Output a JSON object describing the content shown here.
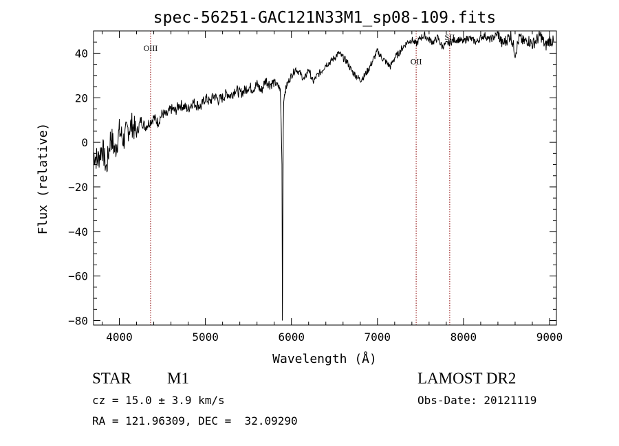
{
  "chart_data": {
    "type": "line",
    "title": "spec-56251-GAC121N33M1_sp08-109.fits",
    "xlabel": "Wavelength (Å)",
    "ylabel": "Flux (relative)",
    "xlim": [
      3700,
      9080
    ],
    "ylim": [
      -82,
      50
    ],
    "xticks": [
      4000,
      5000,
      6000,
      7000,
      8000,
      9000
    ],
    "yticks": [
      -80,
      -60,
      -40,
      -20,
      0,
      20,
      40
    ],
    "series": [
      {
        "name": "flux",
        "x": [
          3700,
          3750,
          3800,
          3850,
          3900,
          3950,
          4000,
          4050,
          4100,
          4150,
          4200,
          4250,
          4300,
          4350,
          4400,
          4450,
          4500,
          4550,
          4600,
          4650,
          4700,
          4750,
          4800,
          4850,
          4900,
          4950,
          5000,
          5050,
          5100,
          5150,
          5200,
          5250,
          5300,
          5350,
          5400,
          5450,
          5500,
          5550,
          5600,
          5650,
          5700,
          5750,
          5800,
          5850,
          5870,
          5880,
          5890,
          5895,
          5900,
          5905,
          5910,
          5920,
          5950,
          6000,
          6050,
          6100,
          6150,
          6200,
          6250,
          6300,
          6350,
          6400,
          6450,
          6500,
          6550,
          6600,
          6650,
          6700,
          6750,
          6800,
          6850,
          6900,
          6950,
          7000,
          7050,
          7100,
          7150,
          7200,
          7250,
          7300,
          7350,
          7400,
          7450,
          7500,
          7550,
          7600,
          7650,
          7700,
          7750,
          7800,
          7850,
          7900,
          7950,
          8000,
          8050,
          8100,
          8150,
          8200,
          8250,
          8300,
          8350,
          8400,
          8450,
          8500,
          8550,
          8600,
          8650,
          8700,
          8750,
          8800,
          8850,
          8900,
          8950,
          9000,
          9050
        ],
        "y": [
          -5,
          -8,
          -2,
          -12,
          3,
          -4,
          5,
          1,
          6,
          8,
          4,
          10,
          7,
          9,
          11,
          9,
          13,
          12,
          15,
          14,
          17,
          16,
          15,
          18,
          17,
          16,
          20,
          18,
          21,
          19,
          20,
          22,
          21,
          24,
          22,
          23,
          25,
          24,
          26,
          23,
          28,
          26,
          27,
          25,
          24,
          10,
          -10,
          -80,
          -40,
          5,
          18,
          22,
          26,
          30,
          33,
          31,
          28,
          33,
          27,
          30,
          32,
          35,
          36,
          38,
          40,
          38,
          36,
          32,
          30,
          28,
          30,
          33,
          37,
          41,
          38,
          36,
          34,
          38,
          40,
          43,
          45,
          46,
          44,
          47,
          48,
          46,
          45,
          47,
          43,
          44,
          45,
          46,
          46,
          45,
          47,
          46,
          45,
          47,
          48,
          46,
          47,
          49,
          44,
          46,
          48,
          40,
          47,
          45,
          46,
          44,
          46,
          48,
          43,
          46,
          45
        ]
      }
    ],
    "line_markers": [
      {
        "label": "OIII",
        "x": 4363,
        "label_y": 41
      },
      {
        "label": "OII",
        "x": 7450,
        "label_y": 35
      },
      {
        "label": "SII",
        "x": 7840,
        "label_y": 46
      }
    ]
  },
  "info": {
    "object_class": "STAR",
    "subclass": "M1",
    "redshift": "cz = 15.0 ± 3.9 km/s",
    "coordinates": "RA = 121.96309, DEC =  32.09290",
    "survey": "LAMOST DR2",
    "obs_date": "Obs-Date: 20121119"
  },
  "colors": {
    "axis": "#000000",
    "spectrum": "#000000",
    "marker_line": "#8b0000"
  }
}
